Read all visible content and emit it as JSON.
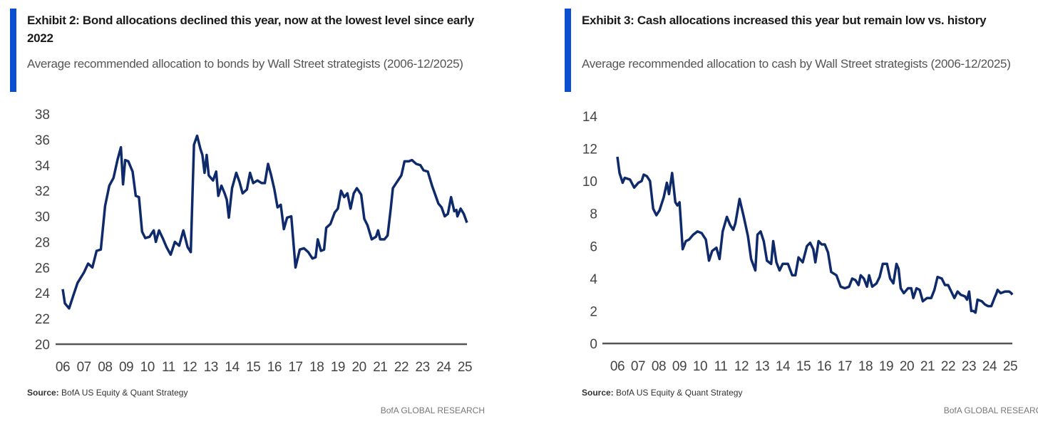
{
  "chart_data": [
    {
      "type": "line",
      "title": "Exhibit 2: Bond allocations declined this year, now at the lowest level since early 2022",
      "subtitle": "Average recommended allocation to bonds by Wall Street strategists (2006-12/2025)",
      "source_label": "Source:",
      "source": "BofA US Equity & Quant Strategy",
      "brand": "BofA GLOBAL RESEARCH",
      "ylim": [
        20,
        38
      ],
      "yticks": [
        "20",
        "22",
        "24",
        "26",
        "28",
        "30",
        "32",
        "34",
        "36",
        "38"
      ],
      "xticks": [
        "06",
        "07",
        "08",
        "09",
        "10",
        "11",
        "12",
        "13",
        "14",
        "15",
        "16",
        "17",
        "18",
        "19",
        "20",
        "21",
        "22",
        "23",
        "24",
        "25"
      ],
      "xlim": [
        2006,
        2025.1
      ],
      "color": "#0f2a6b",
      "series": [
        {
          "name": "Bond allocation (%)",
          "x": [
            2006.0,
            2006.1,
            2006.3,
            2006.5,
            2006.7,
            2007.0,
            2007.2,
            2007.4,
            2007.6,
            2007.8,
            2008.0,
            2008.2,
            2008.4,
            2008.6,
            2008.75,
            2008.85,
            2008.95,
            2009.1,
            2009.3,
            2009.45,
            2009.6,
            2009.75,
            2009.9,
            2010.1,
            2010.3,
            2010.4,
            2010.55,
            2010.75,
            2010.9,
            2011.1,
            2011.3,
            2011.5,
            2011.7,
            2011.9,
            2012.05,
            2012.2,
            2012.35,
            2012.5,
            2012.6,
            2012.7,
            2012.8,
            2012.9,
            2013.1,
            2013.25,
            2013.35,
            2013.5,
            2013.65,
            2013.75,
            2013.85,
            2014.0,
            2014.2,
            2014.35,
            2014.5,
            2014.7,
            2014.85,
            2015.0,
            2015.2,
            2015.4,
            2015.55,
            2015.7,
            2015.85,
            2016.0,
            2016.15,
            2016.3,
            2016.45,
            2016.6,
            2016.8,
            2017.0,
            2017.2,
            2017.4,
            2017.6,
            2017.8,
            2017.95,
            2018.05,
            2018.2,
            2018.35,
            2018.45,
            2018.65,
            2018.85,
            2019.0,
            2019.15,
            2019.3,
            2019.45,
            2019.6,
            2019.75,
            2019.9,
            2020.1,
            2020.25,
            2020.4,
            2020.6,
            2020.8,
            2020.9,
            2021.0,
            2021.2,
            2021.35,
            2021.5,
            2021.6,
            2021.8,
            2022.0,
            2022.15,
            2022.35,
            2022.5,
            2022.7,
            2022.9,
            2023.05,
            2023.25,
            2023.45,
            2023.6,
            2023.75,
            2023.9,
            2024.05,
            2024.2,
            2024.35,
            2024.5,
            2024.6,
            2024.65,
            2024.8,
            2024.95,
            2025.1
          ],
          "y": [
            24.3,
            23.2,
            22.8,
            23.8,
            24.8,
            25.6,
            26.3,
            26.0,
            27.3,
            27.4,
            30.8,
            32.4,
            33.0,
            34.5,
            35.4,
            32.5,
            34.4,
            34.3,
            33.5,
            31.6,
            31.5,
            28.8,
            28.3,
            28.4,
            28.9,
            28.0,
            28.9,
            28.2,
            27.6,
            27.0,
            28.0,
            27.7,
            28.9,
            27.6,
            27.2,
            35.6,
            36.3,
            35.3,
            34.8,
            33.4,
            34.8,
            33.2,
            32.8,
            33.5,
            31.6,
            32.4,
            31.8,
            31.3,
            29.9,
            32.2,
            33.4,
            32.7,
            31.8,
            32.1,
            33.4,
            32.6,
            32.8,
            32.6,
            32.6,
            34.1,
            33.2,
            32.1,
            30.7,
            30.9,
            29.0,
            29.9,
            30.0,
            26.0,
            27.4,
            27.5,
            27.2,
            26.7,
            26.8,
            28.2,
            27.3,
            27.4,
            29.1,
            29.4,
            30.3,
            30.6,
            32.0,
            31.5,
            31.8,
            30.6,
            31.8,
            32.2,
            31.7,
            29.8,
            29.3,
            28.2,
            28.4,
            28.9,
            28.2,
            28.2,
            28.5,
            30.6,
            32.2,
            32.7,
            33.2,
            34.3,
            34.3,
            34.4,
            34.1,
            34.0,
            33.6,
            33.5,
            32.4,
            31.7,
            31.0,
            30.7,
            30.0,
            30.2,
            31.5,
            30.4,
            30.5,
            30.0,
            30.6,
            30.2,
            29.5
          ]
        }
      ]
    },
    {
      "type": "line",
      "title": "Exhibit 3: Cash allocations increased this year but remain low vs. history",
      "subtitle": "Average recommended allocation to cash by Wall Street strategists (2006-12/2025)",
      "source_label": "Source:",
      "source": "BofA US Equity & Quant Strategy",
      "brand": "BofA GLOBAL RESEARCH",
      "ylim": [
        0,
        14
      ],
      "yticks": [
        "0",
        "2",
        "4",
        "6",
        "8",
        "10",
        "12",
        "14"
      ],
      "xticks": [
        "06",
        "07",
        "08",
        "09",
        "10",
        "11",
        "12",
        "13",
        "14",
        "15",
        "16",
        "17",
        "18",
        "19",
        "20",
        "21",
        "22",
        "23",
        "24",
        "25"
      ],
      "xlim": [
        2006,
        2024.75
      ],
      "color": "#0f2a6b",
      "series": [
        {
          "name": "Cash allocation (%)",
          "x": [
            2006.0,
            2006.1,
            2006.25,
            2006.35,
            2006.6,
            2006.8,
            2007.0,
            2007.15,
            2007.25,
            2007.4,
            2007.55,
            2007.7,
            2007.85,
            2008.0,
            2008.2,
            2008.35,
            2008.45,
            2008.6,
            2008.75,
            2008.85,
            2008.95,
            2009.1,
            2009.25,
            2009.4,
            2009.6,
            2009.8,
            2010.0,
            2010.2,
            2010.35,
            2010.5,
            2010.7,
            2010.85,
            2011.0,
            2011.2,
            2011.35,
            2011.5,
            2011.6,
            2011.8,
            2012.0,
            2012.2,
            2012.35,
            2012.55,
            2012.65,
            2012.8,
            2012.95,
            2013.1,
            2013.3,
            2013.4,
            2013.55,
            2013.7,
            2013.85,
            2014.1,
            2014.3,
            2014.45,
            2014.6,
            2014.8,
            2015.0,
            2015.15,
            2015.3,
            2015.4,
            2015.55,
            2015.7,
            2015.85,
            2016.0,
            2016.15,
            2016.4,
            2016.6,
            2016.8,
            2017.0,
            2017.15,
            2017.3,
            2017.45,
            2017.55,
            2017.7,
            2017.85,
            2017.95,
            2018.1,
            2018.3,
            2018.45,
            2018.6,
            2018.8,
            2018.95,
            2019.1,
            2019.25,
            2019.35,
            2019.45,
            2019.6,
            2019.8,
            2019.95,
            2020.05,
            2020.2,
            2020.35,
            2020.5,
            2020.7,
            2020.9,
            2021.05,
            2021.2,
            2021.4,
            2021.55,
            2021.7,
            2021.85,
            2022.0,
            2022.15,
            2022.3,
            2022.5,
            2022.6,
            2022.7,
            2022.8,
            2022.9,
            2023.0,
            2023.1,
            2023.3,
            2023.45,
            2023.6,
            2023.75,
            2023.9,
            2024.0,
            2024.05,
            2024.2,
            2024.4,
            2024.6,
            2024.7,
            2024.75
          ],
          "y": [
            11.5,
            10.5,
            9.9,
            10.2,
            10.1,
            9.6,
            9.9,
            10.0,
            10.4,
            10.3,
            10.0,
            8.3,
            7.9,
            8.2,
            9.0,
            9.9,
            9.2,
            10.5,
            8.7,
            8.5,
            8.7,
            5.8,
            6.3,
            6.4,
            6.7,
            6.9,
            6.8,
            6.4,
            5.1,
            5.7,
            5.9,
            5.2,
            6.9,
            7.8,
            7.3,
            7.0,
            7.4,
            8.9,
            7.8,
            6.6,
            5.2,
            4.5,
            6.7,
            6.9,
            6.3,
            5.1,
            4.9,
            6.3,
            5.0,
            4.5,
            4.9,
            4.9,
            4.2,
            4.2,
            5.3,
            5.0,
            6.0,
            6.2,
            5.8,
            5.0,
            6.3,
            6.1,
            6.1,
            5.6,
            4.4,
            4.2,
            3.5,
            3.4,
            3.5,
            4.0,
            3.9,
            3.6,
            4.2,
            4.0,
            3.5,
            4.2,
            3.5,
            3.7,
            4.1,
            4.9,
            4.9,
            4.0,
            3.7,
            4.9,
            4.6,
            3.4,
            3.1,
            3.4,
            3.4,
            2.8,
            3.4,
            3.3,
            2.6,
            2.8,
            2.8,
            3.3,
            4.1,
            4.0,
            3.6,
            3.6,
            3.2,
            2.8,
            3.2,
            3.0,
            2.9,
            2.7,
            3.2,
            2.0,
            2.0,
            1.9,
            2.7,
            2.6,
            2.4,
            2.3,
            2.3,
            2.8,
            3.1,
            3.3,
            3.1,
            3.2,
            3.2,
            3.1,
            3.0
          ]
        }
      ]
    }
  ]
}
